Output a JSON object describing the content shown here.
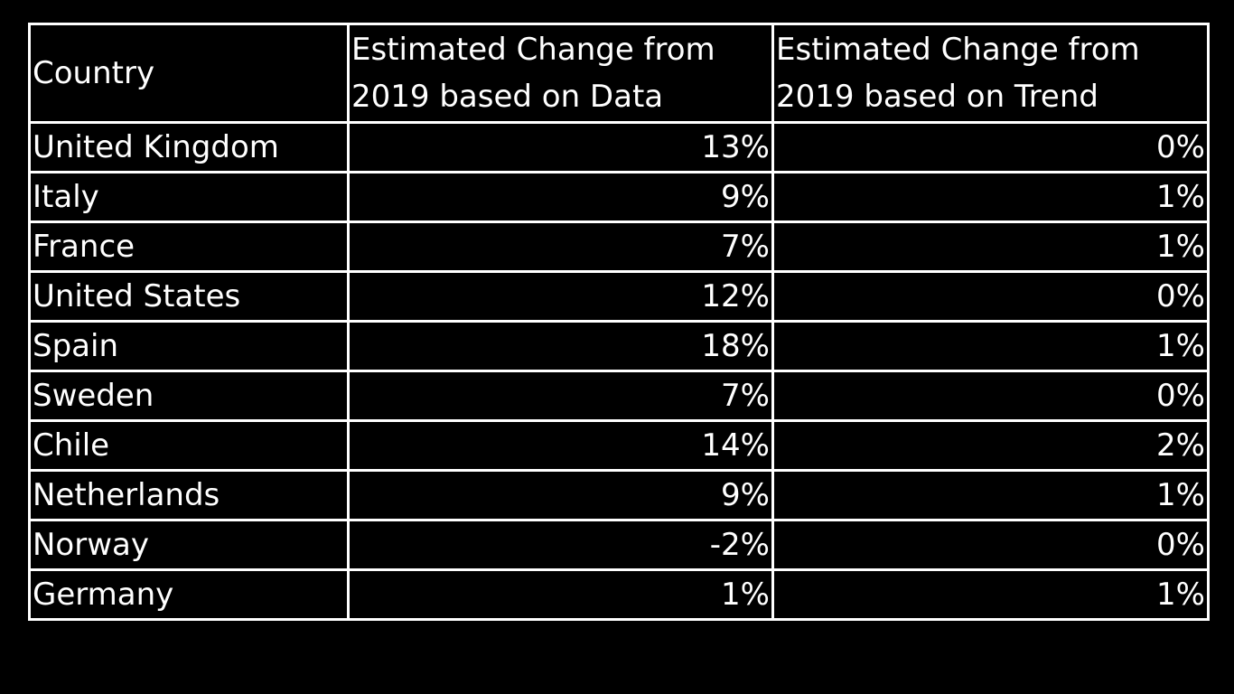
{
  "table": {
    "headers": [
      "Country",
      "Estimated Change from 2019 based on Data",
      "Estimated Change from 2019 based on Trend"
    ],
    "rows": [
      {
        "country": "United Kingdom",
        "data": "13%",
        "trend": "0%"
      },
      {
        "country": "Italy",
        "data": "9%",
        "trend": "1%"
      },
      {
        "country": "France",
        "data": "7%",
        "trend": "1%"
      },
      {
        "country": "United States",
        "data": "12%",
        "trend": "0%"
      },
      {
        "country": "Spain",
        "data": "18%",
        "trend": "1%"
      },
      {
        "country": "Sweden",
        "data": "7%",
        "trend": "0%"
      },
      {
        "country": "Chile",
        "data": "14%",
        "trend": "2%"
      },
      {
        "country": "Netherlands",
        "data": "9%",
        "trend": "1%"
      },
      {
        "country": "Norway",
        "data": "-2%",
        "trend": "0%"
      },
      {
        "country": "Germany",
        "data": "1%",
        "trend": "1%"
      }
    ]
  },
  "colors": {
    "background": "#000000",
    "text": "#ffffff",
    "border": "#ffffff"
  }
}
